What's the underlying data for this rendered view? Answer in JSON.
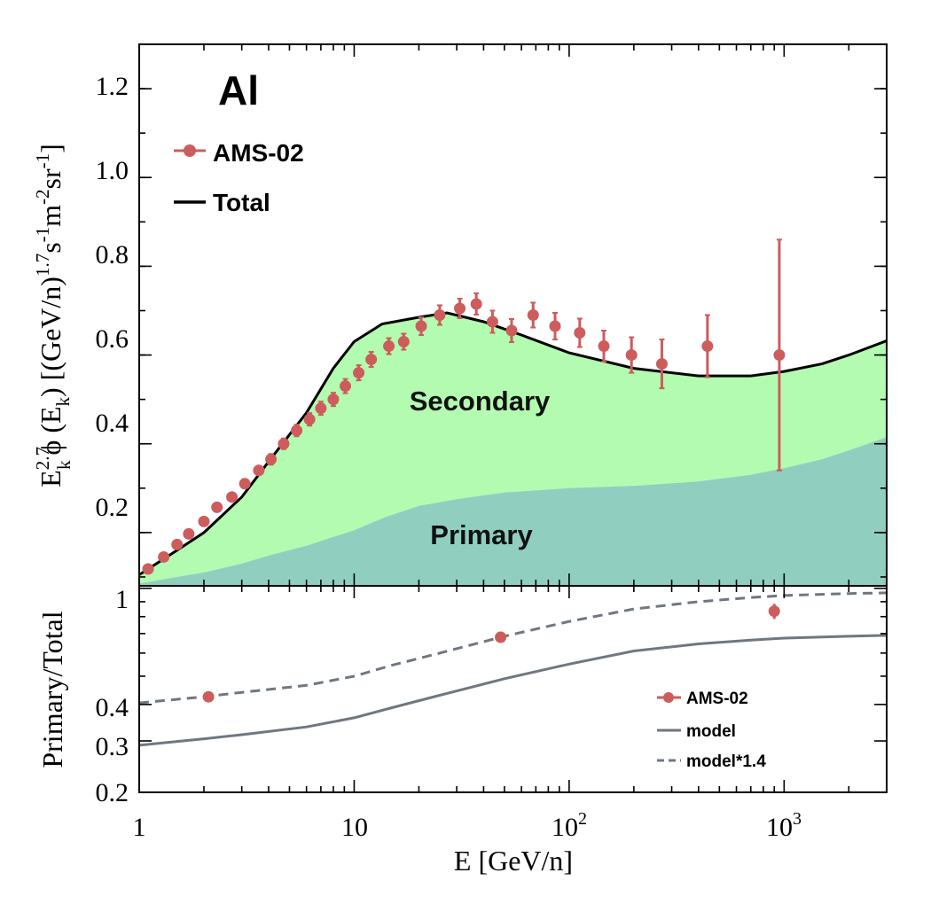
{
  "chart_data": [
    {
      "type": "area",
      "panel": "top",
      "label": "Al",
      "xscale": "log",
      "xlim": [
        1,
        3000
      ],
      "ylim": [
        0.08,
        1.3
      ],
      "yticks": [
        0.2,
        0.4,
        0.6,
        0.8,
        1.0,
        1.2
      ],
      "ytick_labels": [
        "0.2",
        "0.4",
        "0.6",
        "0.8",
        "1.0",
        "1.2"
      ],
      "ylabel": {
        "a": "E",
        "a_sup": "2.7",
        "a_sub": "k",
        "b": "ϕ (E",
        "b_sub": "k",
        "c": ") [(GeV/n)",
        "c_sup": "1.7",
        "d": "s",
        "d_sup": "-1",
        "e": "m",
        "e_sup": "-2",
        "f": "sr",
        "f_sup": "-1",
        "g": "]"
      },
      "region_labels": {
        "secondary": "Secondary",
        "primary": "Primary"
      },
      "legend": {
        "position": "top-left",
        "data": "AMS-02",
        "total": "Total"
      },
      "colors": {
        "data": "#cd5c5c",
        "data_dark": "#7d7a3a",
        "total": "#000000",
        "secondary_fill": "#b3fbb0",
        "primary_fill": "#90cfc0"
      },
      "series": [
        {
          "name": "Total",
          "x": [
            1,
            1.5,
            2,
            3,
            4,
            6,
            8,
            10,
            13.5,
            20,
            27,
            40,
            60,
            100,
            200,
            400,
            700,
            1000,
            1500,
            2000,
            3000
          ],
          "y": [
            0.105,
            0.16,
            0.2,
            0.28,
            0.36,
            0.47,
            0.57,
            0.63,
            0.67,
            0.685,
            0.695,
            0.675,
            0.645,
            0.605,
            0.57,
            0.553,
            0.553,
            0.563,
            0.58,
            0.6,
            0.632
          ]
        },
        {
          "name": "Primary",
          "x": [
            1,
            1.5,
            2,
            3,
            4,
            6,
            8,
            10,
            14,
            20,
            30,
            50,
            100,
            200,
            400,
            700,
            1000,
            1500,
            2000,
            3000
          ],
          "y": [
            0.085,
            0.1,
            0.11,
            0.13,
            0.148,
            0.17,
            0.19,
            0.205,
            0.235,
            0.26,
            0.275,
            0.29,
            0.3,
            0.305,
            0.315,
            0.33,
            0.345,
            0.365,
            0.385,
            0.415
          ]
        },
        {
          "name": "AMS-02",
          "x": [
            1.1,
            1.3,
            1.5,
            1.7,
            2.0,
            2.3,
            2.7,
            3.1,
            3.6,
            4.1,
            4.7,
            5.4,
            6.2,
            7.0,
            8.0,
            9.1,
            10.5,
            12.0,
            14.5,
            17.0,
            20.5,
            25.0,
            31.0,
            37.0,
            44.0,
            54.0,
            68.0,
            86.0,
            112.0,
            145.0,
            195.0,
            270.0,
            440.0,
            950.0
          ],
          "y": [
            0.118,
            0.145,
            0.173,
            0.197,
            0.225,
            0.257,
            0.28,
            0.31,
            0.34,
            0.365,
            0.4,
            0.43,
            0.455,
            0.48,
            0.5,
            0.53,
            0.56,
            0.59,
            0.62,
            0.63,
            0.665,
            0.69,
            0.705,
            0.715,
            0.675,
            0.655,
            0.69,
            0.665,
            0.65,
            0.62,
            0.6,
            0.58,
            0.62,
            0.6
          ],
          "yerr": [
            0.008,
            0.008,
            0.008,
            0.008,
            0.008,
            0.009,
            0.009,
            0.01,
            0.01,
            0.012,
            0.012,
            0.013,
            0.014,
            0.015,
            0.015,
            0.016,
            0.017,
            0.017,
            0.018,
            0.018,
            0.02,
            0.022,
            0.022,
            0.024,
            0.025,
            0.026,
            0.028,
            0.03,
            0.032,
            0.035,
            0.04,
            0.055,
            0.07,
            0.26
          ]
        }
      ]
    },
    {
      "type": "line",
      "panel": "bottom",
      "xscale": "log",
      "yscale": "log",
      "xlim": [
        1,
        3000
      ],
      "ylim": [
        0.2,
        1.02
      ],
      "xlabel": "E [GeV/n]",
      "ylabel": "Primary/Total",
      "xtick_labels": [
        "1",
        "10",
        "10",
        "10"
      ],
      "xtick_sups": [
        "",
        "",
        "2",
        "3"
      ],
      "yticks": [
        0.2,
        0.3,
        0.4,
        1
      ],
      "ytick_labels": [
        "0.2",
        "0.3",
        "0.4",
        "1"
      ],
      "legend": {
        "position": "bottom-right",
        "data": "AMS-02",
        "model": "model",
        "model_scaled": "model*1.4"
      },
      "colors": {
        "model": "#6f7780",
        "data": "#cd5c5c"
      },
      "series": [
        {
          "name": "model",
          "x": [
            1,
            2,
            3,
            6,
            10,
            15,
            25,
            50,
            100,
            200,
            400,
            700,
            1000,
            2000,
            3000
          ],
          "y": [
            0.29,
            0.305,
            0.315,
            0.335,
            0.36,
            0.39,
            0.43,
            0.49,
            0.55,
            0.61,
            0.645,
            0.665,
            0.675,
            0.685,
            0.69
          ]
        },
        {
          "name": "model*1.4",
          "x": [
            1,
            2,
            3,
            6,
            10,
            15,
            25,
            50,
            100,
            200,
            400,
            700,
            1000,
            2000,
            3000
          ],
          "y": [
            0.405,
            0.425,
            0.44,
            0.465,
            0.5,
            0.545,
            0.6,
            0.685,
            0.77,
            0.85,
            0.9,
            0.93,
            0.945,
            0.96,
            0.965
          ]
        },
        {
          "name": "AMS-02",
          "x": [
            2.1,
            48,
            900
          ],
          "y": [
            0.425,
            0.68,
            0.835
          ],
          "yerr": [
            0.012,
            0.015,
            0.05
          ]
        }
      ]
    }
  ]
}
